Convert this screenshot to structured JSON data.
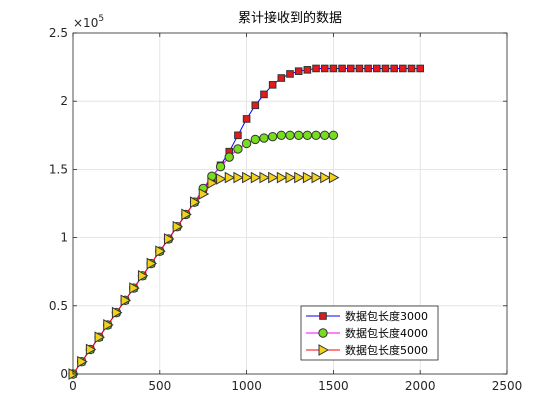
{
  "chart_data": {
    "type": "line",
    "title": "累计接收到的数据",
    "xlabel": "",
    "ylabel": "",
    "xlim": [
      0,
      2500
    ],
    "ylim": [
      0,
      2.5
    ],
    "y_exponent_label": "×10",
    "y_exponent_power": "5",
    "x_ticks": [
      0,
      500,
      1000,
      1500,
      2000,
      2500
    ],
    "x_tick_labels": [
      "0",
      "500",
      "1000",
      "1500",
      "2000",
      "2500"
    ],
    "y_ticks": [
      0,
      0.5,
      1,
      1.5,
      2,
      2.5
    ],
    "y_tick_labels": [
      "0",
      "0.5",
      "1",
      "1.5",
      "2",
      "2.5"
    ],
    "grid": true,
    "legend_position": "bottom-right",
    "series": [
      {
        "name": "数据包长度3000",
        "line_color": "#0000ff",
        "marker": "square",
        "marker_fill": "#e3191b",
        "marker_edge": "#333333",
        "x": [
          0,
          50,
          100,
          150,
          200,
          250,
          300,
          350,
          400,
          450,
          500,
          550,
          600,
          650,
          700,
          750,
          800,
          850,
          900,
          950,
          1000,
          1050,
          1100,
          1150,
          1200,
          1250,
          1300,
          1350,
          1400,
          1450,
          1500,
          1550,
          1600,
          1650,
          1700,
          1750,
          1800,
          1850,
          1900,
          1950,
          2000
        ],
        "y": [
          0,
          0.09,
          0.18,
          0.27,
          0.36,
          0.45,
          0.54,
          0.63,
          0.72,
          0.81,
          0.9,
          0.99,
          1.08,
          1.17,
          1.26,
          1.35,
          1.44,
          1.53,
          1.63,
          1.75,
          1.87,
          1.97,
          2.05,
          2.12,
          2.17,
          2.2,
          2.22,
          2.23,
          2.24,
          2.24,
          2.24,
          2.24,
          2.24,
          2.24,
          2.24,
          2.24,
          2.24,
          2.24,
          2.24,
          2.24,
          2.24
        ]
      },
      {
        "name": "数据包长度4000",
        "line_color": "#ff00ff",
        "marker": "circle",
        "marker_fill": "#77dd1e",
        "marker_edge": "#333333",
        "x": [
          0,
          50,
          100,
          150,
          200,
          250,
          300,
          350,
          400,
          450,
          500,
          550,
          600,
          650,
          700,
          750,
          800,
          850,
          900,
          950,
          1000,
          1050,
          1100,
          1150,
          1200,
          1250,
          1300,
          1350,
          1400,
          1450,
          1500
        ],
        "y": [
          0,
          0.09,
          0.18,
          0.27,
          0.36,
          0.45,
          0.54,
          0.63,
          0.72,
          0.81,
          0.9,
          0.99,
          1.08,
          1.17,
          1.26,
          1.36,
          1.45,
          1.52,
          1.59,
          1.65,
          1.69,
          1.72,
          1.73,
          1.74,
          1.75,
          1.75,
          1.75,
          1.75,
          1.75,
          1.75,
          1.75
        ]
      },
      {
        "name": "数据包长度5000",
        "line_color": "#ff0000",
        "marker": "triangle-right",
        "marker_fill": "#f2d21b",
        "marker_edge": "#333333",
        "x": [
          0,
          50,
          100,
          150,
          200,
          250,
          300,
          350,
          400,
          450,
          500,
          550,
          600,
          650,
          700,
          750,
          800,
          850,
          900,
          950,
          1000,
          1050,
          1100,
          1150,
          1200,
          1250,
          1300,
          1350,
          1400,
          1450,
          1500
        ],
        "y": [
          0,
          0.09,
          0.18,
          0.27,
          0.36,
          0.45,
          0.54,
          0.63,
          0.72,
          0.81,
          0.9,
          0.99,
          1.08,
          1.17,
          1.26,
          1.32,
          1.4,
          1.43,
          1.44,
          1.44,
          1.44,
          1.44,
          1.44,
          1.44,
          1.44,
          1.44,
          1.44,
          1.44,
          1.44,
          1.44,
          1.44
        ]
      }
    ]
  }
}
